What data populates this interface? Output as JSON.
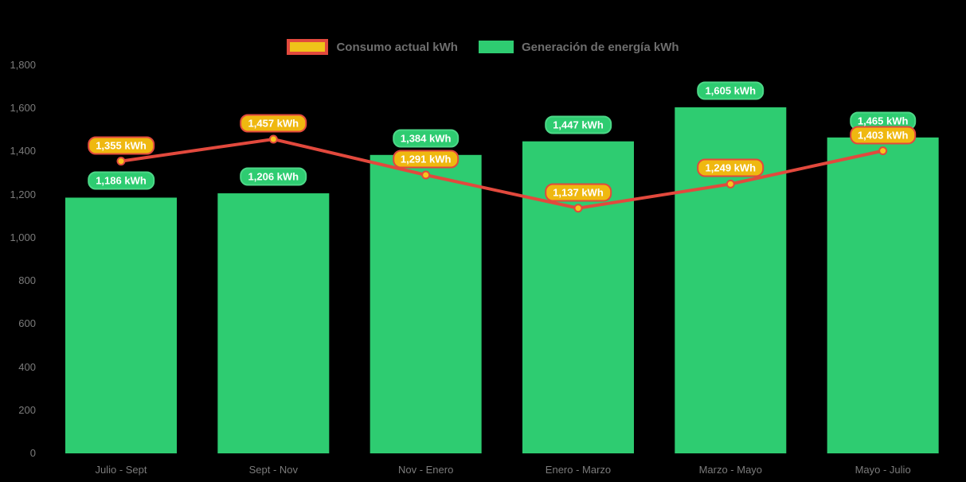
{
  "legend": {
    "items": [
      {
        "label": "Consumo actual kWh",
        "swatch_fill": "#efc319",
        "swatch_border": "#e2493d"
      },
      {
        "label": "Generación de energía kWh",
        "swatch_fill": "#2ecc71"
      }
    ]
  },
  "chart_data": {
    "type": "bar",
    "subtype": "bar-with-line-overlay",
    "title": "",
    "xlabel": "",
    "ylabel": "",
    "categories": [
      "Julio - Sept",
      "Sept - Nov",
      "Nov - Enero",
      "Enero - Marzo",
      "Marzo - Mayo",
      "Mayo - Julio"
    ],
    "series": [
      {
        "name": "Generación de energía kWh",
        "type": "bar",
        "values": [
          1186,
          1206,
          1384,
          1447,
          1605,
          1465
        ],
        "labels": [
          "1,186 kWh",
          "1,206 kWh",
          "1,384 kWh",
          "1,447 kWh",
          "1,605 kWh",
          "1,465 kWh"
        ],
        "color": "#2ecc71"
      },
      {
        "name": "Consumo actual kWh",
        "type": "line",
        "values": [
          1355,
          1457,
          1291,
          1137,
          1249,
          1403
        ],
        "labels": [
          "1,355 kWh",
          "1,457 kWh",
          "1,291 kWh",
          "1,137 kWh",
          "1,249 kWh",
          "1,403 kWh"
        ],
        "color": "#e2493d",
        "marker_fill": "#f6c51e",
        "marker_stroke": "#e2493d"
      }
    ],
    "ylim": [
      0,
      1800
    ],
    "yticks": {
      "values": [
        0,
        200,
        400,
        600,
        800,
        1000,
        1200,
        1400,
        1600,
        1800
      ],
      "labels": [
        "0",
        "200",
        "400",
        "600",
        "800",
        "1,000",
        "1,200",
        "1,400",
        "1,600",
        "1,800"
      ]
    },
    "grid": false,
    "legend_position": "top",
    "background": "#000000"
  }
}
